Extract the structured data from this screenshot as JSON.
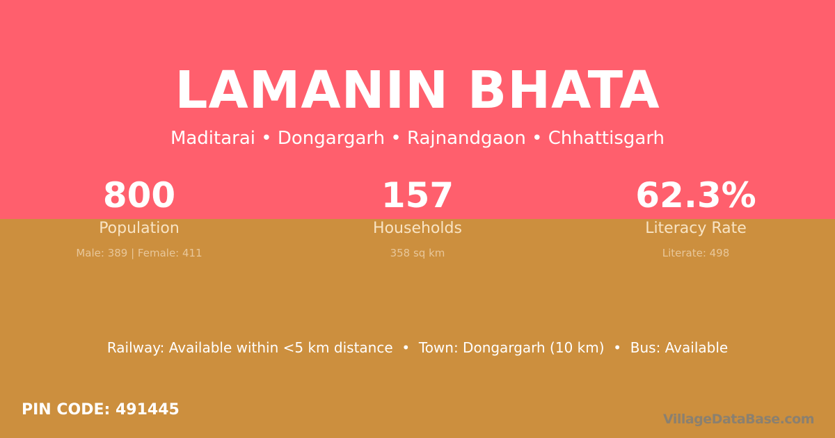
{
  "colors": {
    "top_background": "#ff5f6d",
    "bottom_background": "#cc8f3e"
  },
  "village_name": "LAMANIN BHATA",
  "location": "Maditarai • Dongargarh • Rajnandgaon • Chhattisgarh",
  "stats": [
    {
      "value": "800",
      "label": "Population",
      "detail": "Male: 389 | Female: 411"
    },
    {
      "value": "157",
      "label": "Households",
      "detail": "358 sq km"
    },
    {
      "value": "62.3%",
      "label": "Literacy Rate",
      "detail": "Literate: 498"
    }
  ],
  "connectivity": "Railway: Available within <5 km distance  •  Town: Dongargarh (10 km)  •  Bus: Available",
  "pin_code": "PIN CODE: 491445",
  "brand": "VillageDataBase.com"
}
